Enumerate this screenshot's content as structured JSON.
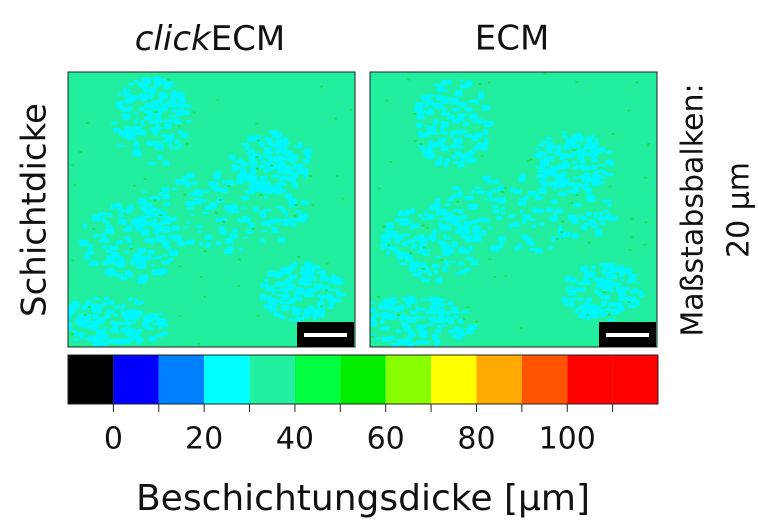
{
  "chart_data": {
    "type": "colorbar",
    "panels": [
      {
        "title_italic": "click",
        "title": "ECM"
      },
      {
        "title": "ECM"
      }
    ],
    "row_label": "Schichtdicke",
    "scale_note": [
      "Maßstabsbalken:",
      "20 µm"
    ],
    "xlabel": "Beschichtungsdicke [µm]",
    "bounds": [
      -10,
      0,
      10,
      20,
      30,
      40,
      50,
      60,
      70,
      80,
      90,
      100,
      110,
      120
    ],
    "colors": [
      "#000000",
      "#0000ff",
      "#0080ff",
      "#00ffff",
      "#20f0a0",
      "#00ff40",
      "#00ee00",
      "#88ff00",
      "#ffff00",
      "#ffaa00",
      "#ff5500",
      "#ff0000",
      "#ff0000"
    ],
    "xlim": [
      -10,
      120
    ],
    "xticks": [
      0,
      20,
      40,
      60,
      80,
      100
    ],
    "minor_xticks": [
      10,
      30,
      50,
      70,
      90,
      110
    ]
  }
}
